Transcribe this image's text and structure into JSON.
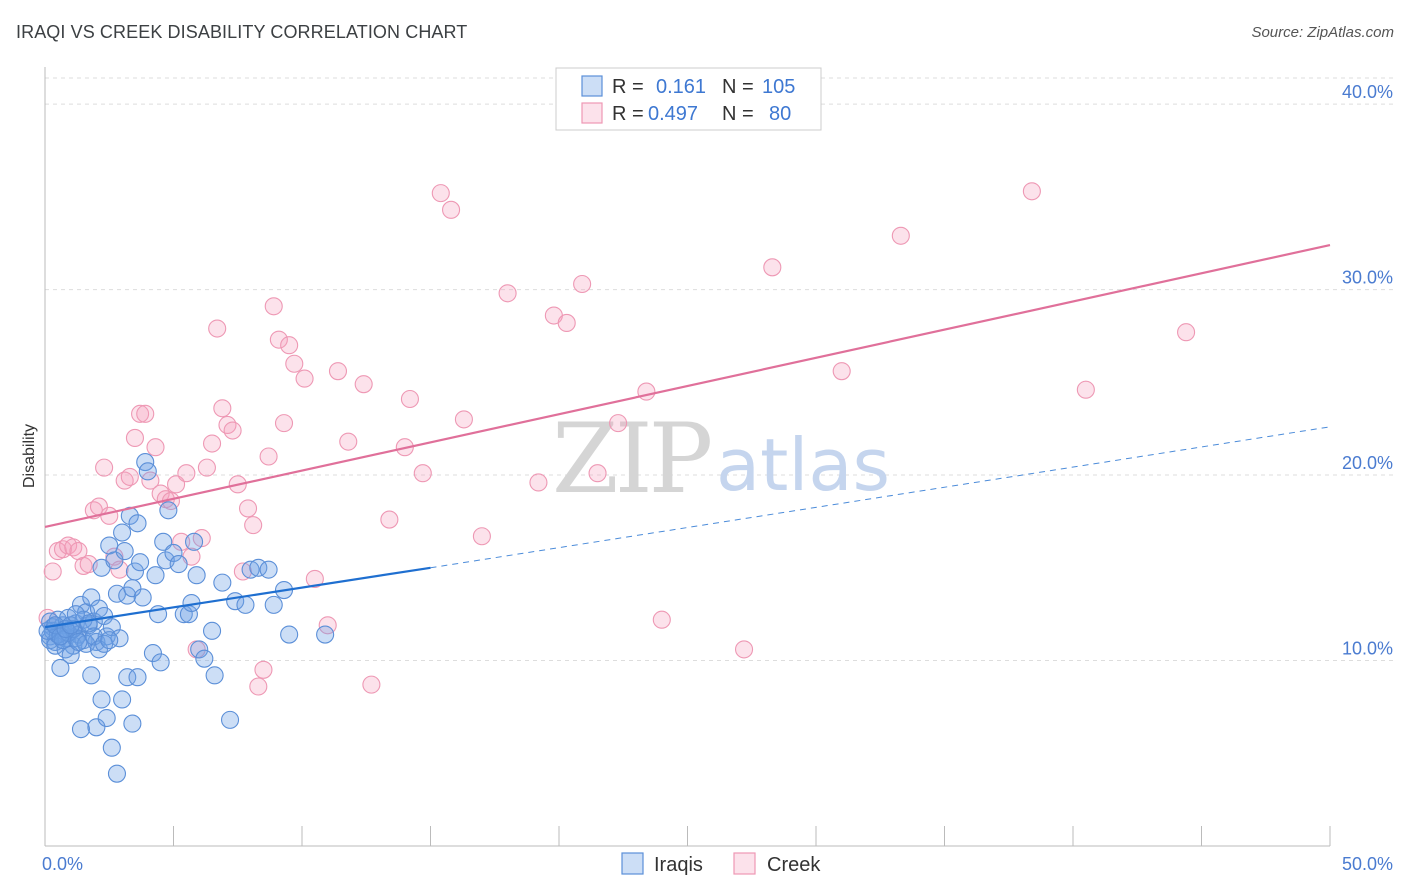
{
  "title": "IRAQI VS CREEK DISABILITY CORRELATION CHART",
  "source": "Source: ZipAtlas.com",
  "watermark": {
    "zip": "ZIP",
    "atlas": "atlas"
  },
  "colors": {
    "iraqis_fill": "rgba(110,160,230,0.35)",
    "iraqis_stroke": "#5b8fd8",
    "iraqis_line": "#1f6fd0",
    "creek_fill": "rgba(245,160,190,0.30)",
    "creek_stroke": "#ee98b4",
    "creek_line": "#e0709a",
    "grid": "#dddddd",
    "tick_text": "#4a7bd0"
  },
  "chart_data": {
    "type": "scatter",
    "title": "IRAQI VS CREEK DISABILITY CORRELATION CHART",
    "xlabel": "",
    "ylabel": "Disability",
    "xlim": [
      0,
      50
    ],
    "ylim": [
      0,
      42
    ],
    "x_tick_labels": [
      "0.0%",
      "50.0%"
    ],
    "y_ticks": [
      10,
      20,
      30,
      40
    ],
    "y_tick_labels": [
      "10.0%",
      "20.0%",
      "30.0%",
      "40.0%"
    ],
    "grid": true,
    "legend": [
      {
        "name": "Iraqis",
        "r_label": "R =",
        "r": "0.161",
        "n_label": "N =",
        "n": "105"
      },
      {
        "name": "Creek",
        "r_label": "R =",
        "r": "0.497",
        "n_label": "N =",
        "n": "80"
      }
    ],
    "series": [
      {
        "name": "Iraqis",
        "trend": {
          "x0": 0,
          "y0": 11.8,
          "x1": 15,
          "y1": 15.0,
          "dashed_to_x": 50,
          "dashed_to_y": 22.6
        },
        "points": [
          [
            0.2,
            11.3
          ],
          [
            0.3,
            11.8
          ],
          [
            0.4,
            11.0
          ],
          [
            0.5,
            12.2
          ],
          [
            0.6,
            11.5
          ],
          [
            0.7,
            11.9
          ],
          [
            0.8,
            11.2
          ],
          [
            0.9,
            12.3
          ],
          [
            1.0,
            11.6
          ],
          [
            1.1,
            10.8
          ],
          [
            1.2,
            12.0
          ],
          [
            1.3,
            11.4
          ],
          [
            1.4,
            13.0
          ],
          [
            1.5,
            11.1
          ],
          [
            1.6,
            12.6
          ],
          [
            1.7,
            11.9
          ],
          [
            1.8,
            13.4
          ],
          [
            1.9,
            12.1
          ],
          [
            2.0,
            11.0
          ],
          [
            2.1,
            12.8
          ],
          [
            2.2,
            15.0
          ],
          [
            2.3,
            12.4
          ],
          [
            2.4,
            11.3
          ],
          [
            2.5,
            16.2
          ],
          [
            2.6,
            11.8
          ],
          [
            2.7,
            15.4
          ],
          [
            2.8,
            13.6
          ],
          [
            2.9,
            11.2
          ],
          [
            3.0,
            16.9
          ],
          [
            3.1,
            15.9
          ],
          [
            3.2,
            13.5
          ],
          [
            3.3,
            17.8
          ],
          [
            3.4,
            13.9
          ],
          [
            3.5,
            14.8
          ],
          [
            3.6,
            17.4
          ],
          [
            3.7,
            15.3
          ],
          [
            3.8,
            13.4
          ],
          [
            3.9,
            20.7
          ],
          [
            4.0,
            20.2
          ],
          [
            4.2,
            10.4
          ],
          [
            4.3,
            14.6
          ],
          [
            4.4,
            12.5
          ],
          [
            4.5,
            9.9
          ],
          [
            4.6,
            16.4
          ],
          [
            4.7,
            15.4
          ],
          [
            4.8,
            18.1
          ],
          [
            5.0,
            15.8
          ],
          [
            5.2,
            15.2
          ],
          [
            5.4,
            12.5
          ],
          [
            5.6,
            12.5
          ],
          [
            5.7,
            13.1
          ],
          [
            5.8,
            16.4
          ],
          [
            5.9,
            14.6
          ],
          [
            6.0,
            10.6
          ],
          [
            6.2,
            10.1
          ],
          [
            6.5,
            11.6
          ],
          [
            6.6,
            9.2
          ],
          [
            6.9,
            14.2
          ],
          [
            7.2,
            6.8
          ],
          [
            7.4,
            13.2
          ],
          [
            7.8,
            13.0
          ],
          [
            8.0,
            14.9
          ],
          [
            8.3,
            15.0
          ],
          [
            8.7,
            14.9
          ],
          [
            8.9,
            13.0
          ],
          [
            9.3,
            13.8
          ],
          [
            9.5,
            11.4
          ],
          [
            10.9,
            11.4
          ],
          [
            0.2,
            11.1
          ],
          [
            0.4,
            10.8
          ],
          [
            0.6,
            9.6
          ],
          [
            0.8,
            10.6
          ],
          [
            1.0,
            10.3
          ],
          [
            1.2,
            11.2
          ],
          [
            1.4,
            6.3
          ],
          [
            1.6,
            10.9
          ],
          [
            1.8,
            9.2
          ],
          [
            2.0,
            6.4
          ],
          [
            2.2,
            7.9
          ],
          [
            2.4,
            6.9
          ],
          [
            2.6,
            5.3
          ],
          [
            2.8,
            3.9
          ],
          [
            3.0,
            7.9
          ],
          [
            3.2,
            9.1
          ],
          [
            3.4,
            6.6
          ],
          [
            3.6,
            9.1
          ],
          [
            0.3,
            11.6
          ],
          [
            0.5,
            11.4
          ],
          [
            0.7,
            11.1
          ],
          [
            0.9,
            11.5
          ],
          [
            1.1,
            11.7
          ],
          [
            1.3,
            11.0
          ],
          [
            1.5,
            12.2
          ],
          [
            1.7,
            12.0
          ],
          [
            1.9,
            11.3
          ],
          [
            2.1,
            10.6
          ],
          [
            2.3,
            10.9
          ],
          [
            2.5,
            11.1
          ],
          [
            0.1,
            11.6
          ],
          [
            0.2,
            12.1
          ],
          [
            0.4,
            11.9
          ],
          [
            0.6,
            11.3
          ],
          [
            0.8,
            11.7
          ],
          [
            1.0,
            11.9
          ],
          [
            1.2,
            12.5
          ]
        ]
      },
      {
        "name": "Creek",
        "trend": {
          "x0": 0,
          "y0": 17.2,
          "x1": 50,
          "y1": 32.4
        },
        "points": [
          [
            0.1,
            12.3
          ],
          [
            0.3,
            14.8
          ],
          [
            0.5,
            15.9
          ],
          [
            0.7,
            16.0
          ],
          [
            0.9,
            16.2
          ],
          [
            1.1,
            16.1
          ],
          [
            1.3,
            15.9
          ],
          [
            1.5,
            15.1
          ],
          [
            1.7,
            15.2
          ],
          [
            1.9,
            18.1
          ],
          [
            2.1,
            18.3
          ],
          [
            2.3,
            20.4
          ],
          [
            2.5,
            17.8
          ],
          [
            2.7,
            15.6
          ],
          [
            2.9,
            14.9
          ],
          [
            3.1,
            19.7
          ],
          [
            3.3,
            19.9
          ],
          [
            3.5,
            22.0
          ],
          [
            3.7,
            23.3
          ],
          [
            3.9,
            23.3
          ],
          [
            4.1,
            19.7
          ],
          [
            4.3,
            21.5
          ],
          [
            4.5,
            19.0
          ],
          [
            4.7,
            18.7
          ],
          [
            4.9,
            18.6
          ],
          [
            5.1,
            19.5
          ],
          [
            5.3,
            16.4
          ],
          [
            5.5,
            20.1
          ],
          [
            5.7,
            15.6
          ],
          [
            5.9,
            10.6
          ],
          [
            6.1,
            16.6
          ],
          [
            6.3,
            20.4
          ],
          [
            6.5,
            21.7
          ],
          [
            6.7,
            27.9
          ],
          [
            6.9,
            23.6
          ],
          [
            7.1,
            22.7
          ],
          [
            7.3,
            22.4
          ],
          [
            7.5,
            19.5
          ],
          [
            7.7,
            14.8
          ],
          [
            7.9,
            18.2
          ],
          [
            8.1,
            17.3
          ],
          [
            8.3,
            8.6
          ],
          [
            8.5,
            9.5
          ],
          [
            8.7,
            21.0
          ],
          [
            8.9,
            29.1
          ],
          [
            9.1,
            27.3
          ],
          [
            9.3,
            22.8
          ],
          [
            9.5,
            27.0
          ],
          [
            9.7,
            26.0
          ],
          [
            10.1,
            25.2
          ],
          [
            10.5,
            14.4
          ],
          [
            11.0,
            11.9
          ],
          [
            11.4,
            25.6
          ],
          [
            11.8,
            21.8
          ],
          [
            12.4,
            24.9
          ],
          [
            12.7,
            8.7
          ],
          [
            13.4,
            17.6
          ],
          [
            14.0,
            21.5
          ],
          [
            14.2,
            24.1
          ],
          [
            14.7,
            20.1
          ],
          [
            15.4,
            35.2
          ],
          [
            15.8,
            34.3
          ],
          [
            16.3,
            23.0
          ],
          [
            17.0,
            16.7
          ],
          [
            18.0,
            29.8
          ],
          [
            19.2,
            19.6
          ],
          [
            19.8,
            28.6
          ],
          [
            20.3,
            28.2
          ],
          [
            20.9,
            30.3
          ],
          [
            21.5,
            20.1
          ],
          [
            22.3,
            22.8
          ],
          [
            23.4,
            24.5
          ],
          [
            24.0,
            12.2
          ],
          [
            27.2,
            10.6
          ],
          [
            28.3,
            31.2
          ],
          [
            31.0,
            25.6
          ],
          [
            33.3,
            32.9
          ],
          [
            38.4,
            35.3
          ],
          [
            40.5,
            24.6
          ],
          [
            44.4,
            27.7
          ]
        ]
      }
    ]
  }
}
